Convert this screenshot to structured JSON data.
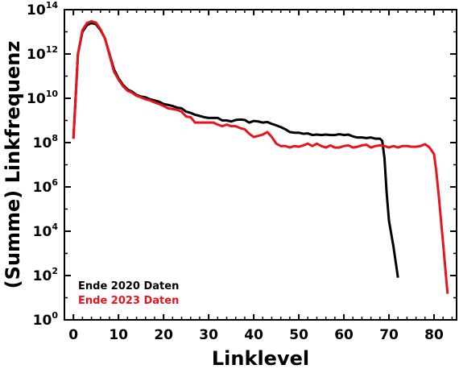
{
  "chart_data": {
    "type": "line",
    "title": "",
    "xlabel": "Linklevel",
    "ylabel": "(Summe) Linkfrequenz",
    "xlim": [
      -2,
      85
    ],
    "ylim": [
      1,
      100000000000000
    ],
    "yscale": "log",
    "x_ticks": [
      0,
      10,
      20,
      30,
      40,
      50,
      60,
      70,
      80
    ],
    "x_tick_labels": [
      "0",
      "10",
      "20",
      "30",
      "40",
      "50",
      "60",
      "70",
      "80"
    ],
    "y_ticks": [
      {
        "value": 1,
        "base": "10",
        "exp": "0"
      },
      {
        "value": 100,
        "base": "10",
        "exp": "2"
      },
      {
        "value": 10000,
        "base": "10",
        "exp": "4"
      },
      {
        "value": 1000000,
        "base": "10",
        "exp": "6"
      },
      {
        "value": 100000000,
        "base": "10",
        "exp": "8"
      },
      {
        "value": 10000000000,
        "base": "10",
        "exp": "10"
      },
      {
        "value": 1000000000000,
        "base": "10",
        "exp": "12"
      },
      {
        "value": 100000000000000,
        "base": "10",
        "exp": "14"
      }
    ],
    "grid": false,
    "legend_position": "bottom-left",
    "series": [
      {
        "name": "Ende 2020 Daten",
        "color": "#000000",
        "points": [
          [
            0,
            150000000.0
          ],
          [
            1,
            1000000000000.0
          ],
          [
            2,
            10000000000000.0
          ],
          [
            3,
            20000000000000.0
          ],
          [
            4,
            25000000000000.0
          ],
          [
            5,
            22000000000000.0
          ],
          [
            6,
            12000000000000.0
          ],
          [
            7,
            5000000000000.0
          ],
          [
            8,
            1000000000000.0
          ],
          [
            9,
            200000000000.0
          ],
          [
            10,
            80000000000.0
          ],
          [
            11,
            40000000000.0
          ],
          [
            12,
            25000000000.0
          ],
          [
            13,
            20000000000.0
          ],
          [
            14,
            14000000000.0
          ],
          [
            15,
            12000000000.0
          ],
          [
            16,
            11000000000.0
          ],
          [
            17,
            9000000000.0
          ],
          [
            18,
            8000000000.0
          ],
          [
            19,
            7000000000.0
          ],
          [
            20,
            5500000000.0
          ],
          [
            21,
            5000000000.0
          ],
          [
            22,
            4500000000.0
          ],
          [
            23,
            3800000000.0
          ],
          [
            24,
            3500000000.0
          ],
          [
            25,
            2500000000.0
          ],
          [
            26,
            2200000000.0
          ],
          [
            27,
            1800000000.0
          ],
          [
            28,
            1600000000.0
          ],
          [
            29,
            1400000000.0
          ],
          [
            30,
            1300000000.0
          ],
          [
            31,
            1300000000.0
          ],
          [
            32,
            1300000000.0
          ],
          [
            33,
            1000000000.0
          ],
          [
            34,
            1000000000.0
          ],
          [
            35,
            900000000.0
          ],
          [
            36,
            1050000000.0
          ],
          [
            37,
            1100000000.0
          ],
          [
            38,
            1050000000.0
          ],
          [
            39,
            800000000.0
          ],
          [
            40,
            950000000.0
          ],
          [
            41,
            900000000.0
          ],
          [
            42,
            800000000.0
          ],
          [
            43,
            850000000.0
          ],
          [
            44,
            700000000.0
          ],
          [
            45,
            600000000.0
          ],
          [
            46,
            500000000.0
          ],
          [
            47,
            400000000.0
          ],
          [
            48,
            300000000.0
          ],
          [
            49,
            280000000.0
          ],
          [
            50,
            280000000.0
          ],
          [
            51,
            250000000.0
          ],
          [
            52,
            260000000.0
          ],
          [
            53,
            220000000.0
          ],
          [
            54,
            230000000.0
          ],
          [
            55,
            220000000.0
          ],
          [
            56,
            230000000.0
          ],
          [
            57,
            220000000.0
          ],
          [
            58,
            220000000.0
          ],
          [
            59,
            240000000.0
          ],
          [
            60,
            220000000.0
          ],
          [
            61,
            230000000.0
          ],
          [
            62,
            190000000.0
          ],
          [
            63,
            170000000.0
          ],
          [
            64,
            170000000.0
          ],
          [
            65,
            160000000.0
          ],
          [
            66,
            170000000.0
          ],
          [
            67,
            150000000.0
          ],
          [
            68,
            150000000.0
          ],
          [
            68.5,
            120000000.0
          ],
          [
            69,
            20000000.0
          ],
          [
            69.5,
            500000.0
          ],
          [
            70,
            30000.0
          ],
          [
            71,
            2000.0
          ],
          [
            72,
            80
          ]
        ]
      },
      {
        "name": "Ende 2023 Daten",
        "color": "#e8141c",
        "points": [
          [
            0,
            150000000.0
          ],
          [
            1,
            1000000000000.0
          ],
          [
            2,
            12000000000000.0
          ],
          [
            3,
            25000000000000.0
          ],
          [
            4,
            30000000000000.0
          ],
          [
            5,
            26000000000000.0
          ],
          [
            6,
            13000000000000.0
          ],
          [
            7,
            5000000000000.0
          ],
          [
            8,
            900000000000.0
          ],
          [
            9,
            160000000000.0
          ],
          [
            10,
            70000000000.0
          ],
          [
            11,
            35000000000.0
          ],
          [
            12,
            22000000000.0
          ],
          [
            13,
            18000000000.0
          ],
          [
            14,
            13000000000.0
          ],
          [
            15,
            11000000000.0
          ],
          [
            16,
            9000000000.0
          ],
          [
            17,
            8000000000.0
          ],
          [
            18,
            6500000000.0
          ],
          [
            19,
            5500000000.0
          ],
          [
            20,
            4500000000.0
          ],
          [
            21,
            3500000000.0
          ],
          [
            22,
            3300000000.0
          ],
          [
            23,
            3000000000.0
          ],
          [
            24,
            2500000000.0
          ],
          [
            25,
            1500000000.0
          ],
          [
            26,
            1400000000.0
          ],
          [
            27,
            800000000.0
          ],
          [
            28,
            800000000.0
          ],
          [
            29,
            800000000.0
          ],
          [
            30,
            800000000.0
          ],
          [
            31,
            800000000.0
          ],
          [
            32,
            650000000.0
          ],
          [
            33,
            550000000.0
          ],
          [
            34,
            650000000.0
          ],
          [
            35,
            550000000.0
          ],
          [
            36,
            550000000.0
          ],
          [
            37,
            450000000.0
          ],
          [
            38,
            400000000.0
          ],
          [
            39,
            250000000.0
          ],
          [
            40,
            180000000.0
          ],
          [
            41,
            200000000.0
          ],
          [
            42,
            230000000.0
          ],
          [
            43,
            300000000.0
          ],
          [
            44,
            180000000.0
          ],
          [
            45,
            90000000.0
          ],
          [
            46,
            70000000.0
          ],
          [
            47,
            70000000.0
          ],
          [
            48,
            60000000.0
          ],
          [
            49,
            70000000.0
          ],
          [
            50,
            65000000.0
          ],
          [
            51,
            75000000.0
          ],
          [
            52,
            90000000.0
          ],
          [
            53,
            70000000.0
          ],
          [
            54,
            90000000.0
          ],
          [
            55,
            70000000.0
          ],
          [
            56,
            60000000.0
          ],
          [
            57,
            75000000.0
          ],
          [
            58,
            60000000.0
          ],
          [
            59,
            60000000.0
          ],
          [
            60,
            70000000.0
          ],
          [
            61,
            75000000.0
          ],
          [
            62,
            60000000.0
          ],
          [
            63,
            65000000.0
          ],
          [
            64,
            75000000.0
          ],
          [
            65,
            80000000.0
          ],
          [
            66,
            60000000.0
          ],
          [
            67,
            70000000.0
          ],
          [
            68,
            75000000.0
          ],
          [
            69,
            70000000.0
          ],
          [
            70,
            60000000.0
          ],
          [
            71,
            70000000.0
          ],
          [
            72,
            60000000.0
          ],
          [
            73,
            70000000.0
          ],
          [
            74,
            70000000.0
          ],
          [
            75,
            65000000.0
          ],
          [
            76,
            65000000.0
          ],
          [
            77,
            70000000.0
          ],
          [
            78,
            85000000.0
          ],
          [
            79,
            60000000.0
          ],
          [
            80,
            30000000.0
          ],
          [
            80.5,
            5000000.0
          ],
          [
            81,
            500000.0
          ],
          [
            82,
            3000.0
          ],
          [
            83,
            15
          ]
        ]
      }
    ]
  }
}
